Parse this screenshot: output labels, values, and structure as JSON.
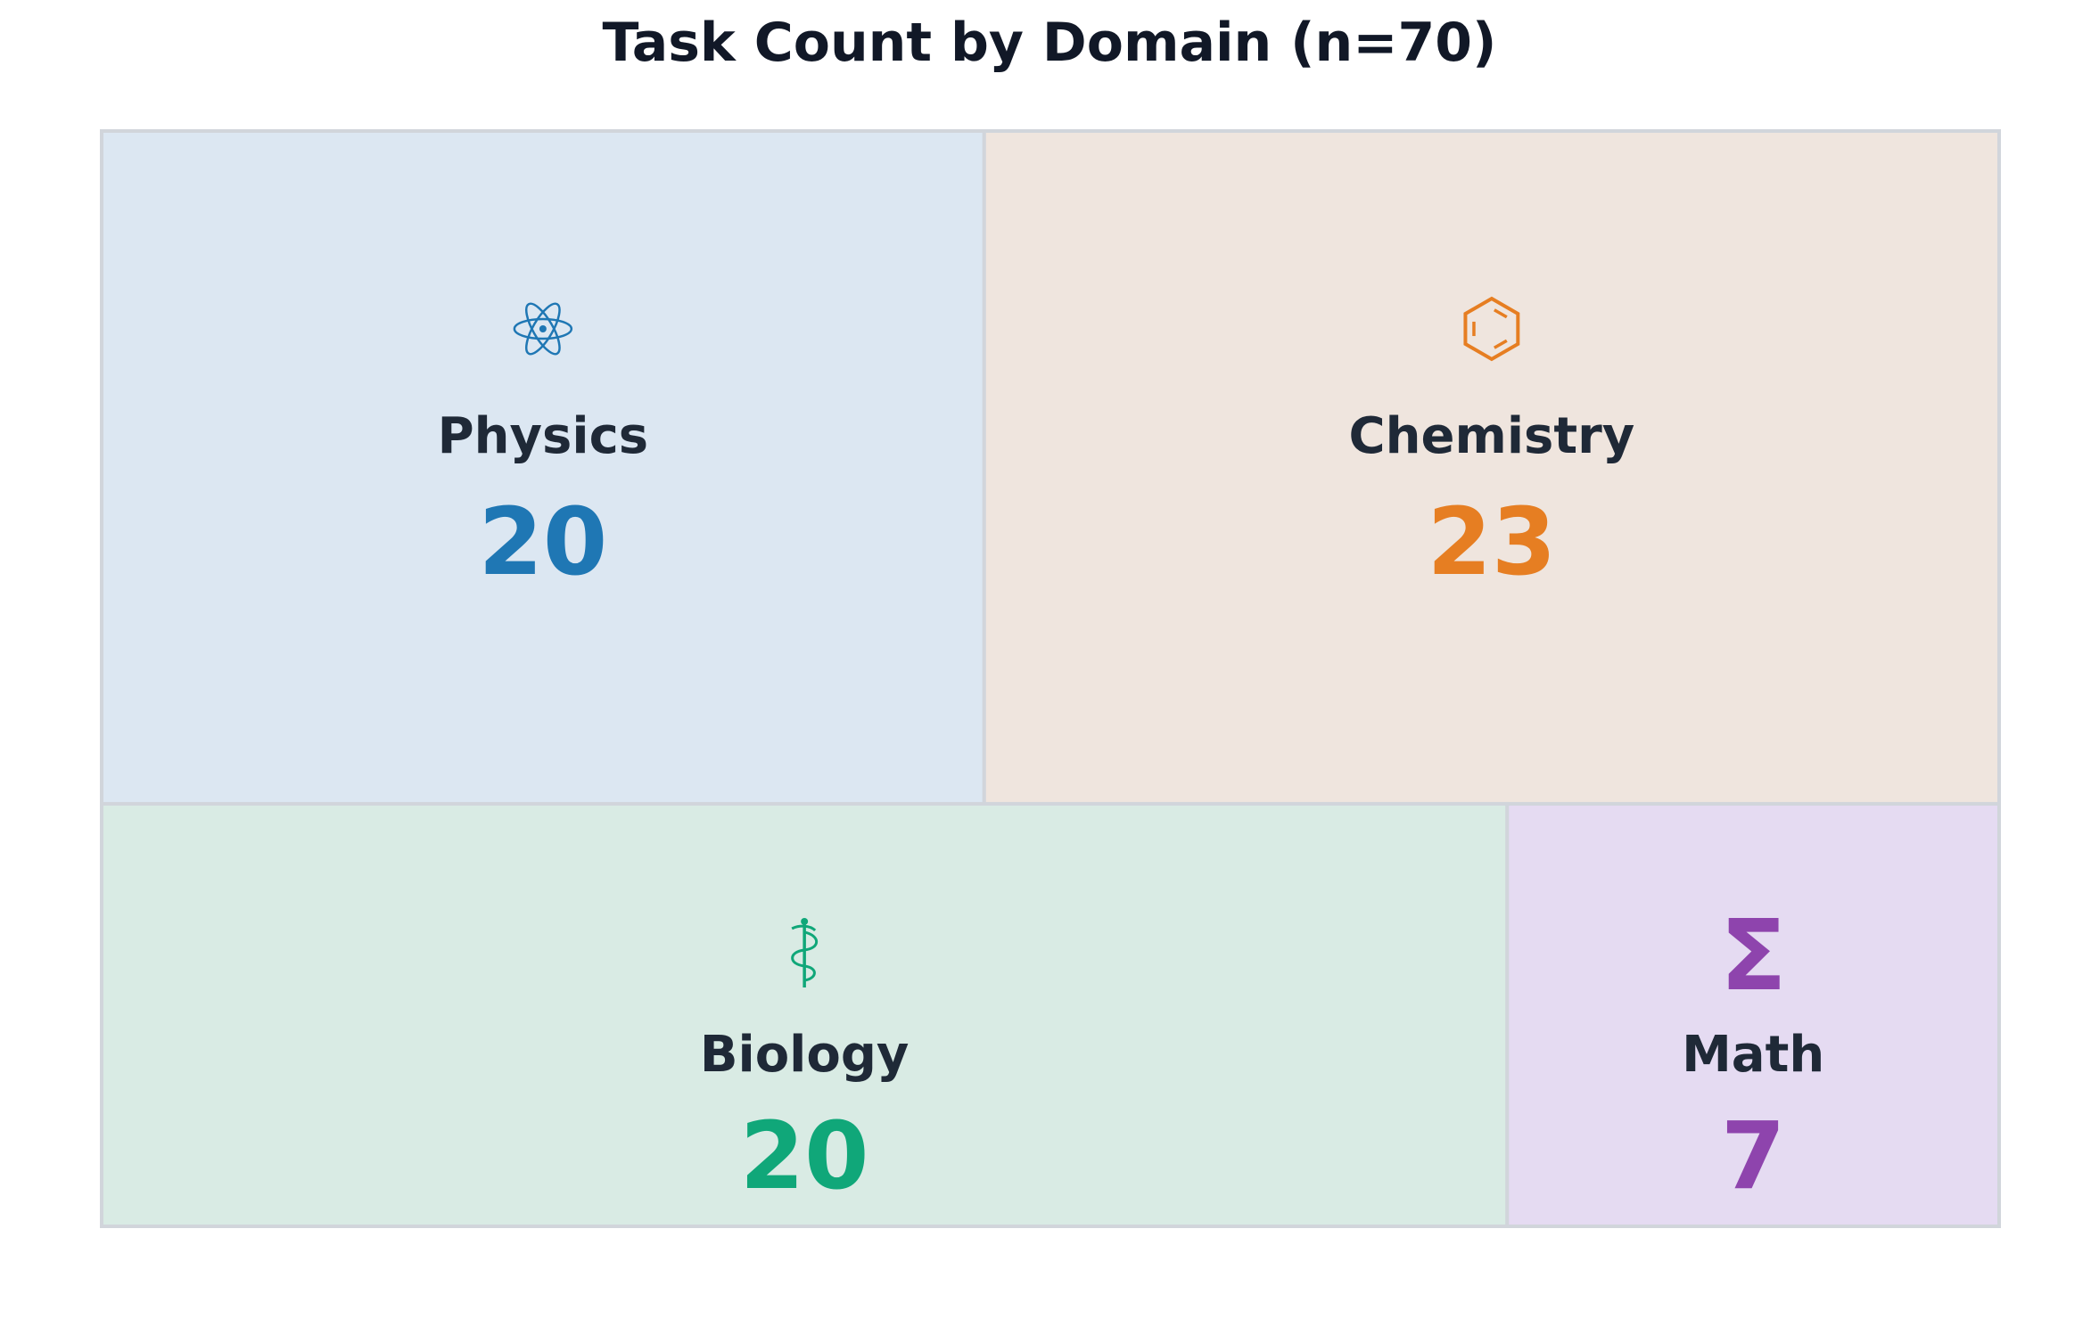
{
  "chart_data": {
    "type": "treemap",
    "title": "Task Count by Domain (n=70)",
    "total": 70,
    "items": [
      {
        "label": "Physics",
        "value": 20,
        "icon": "atom-icon",
        "color": "#1f77b4",
        "fill": "#dce7f2"
      },
      {
        "label": "Chemistry",
        "value": 23,
        "icon": "benzene-icon",
        "color": "#e67e22",
        "fill": "#efe5de"
      },
      {
        "label": "Biology",
        "value": 20,
        "icon": "caduceus-icon",
        "color": "#10a779",
        "fill": "#d9ebe4"
      },
      {
        "label": "Math",
        "value": 7,
        "icon": "sigma-icon",
        "color": "#8e44ad",
        "fill": "#e5dbf2",
        "glyph": "Σ"
      }
    ]
  }
}
